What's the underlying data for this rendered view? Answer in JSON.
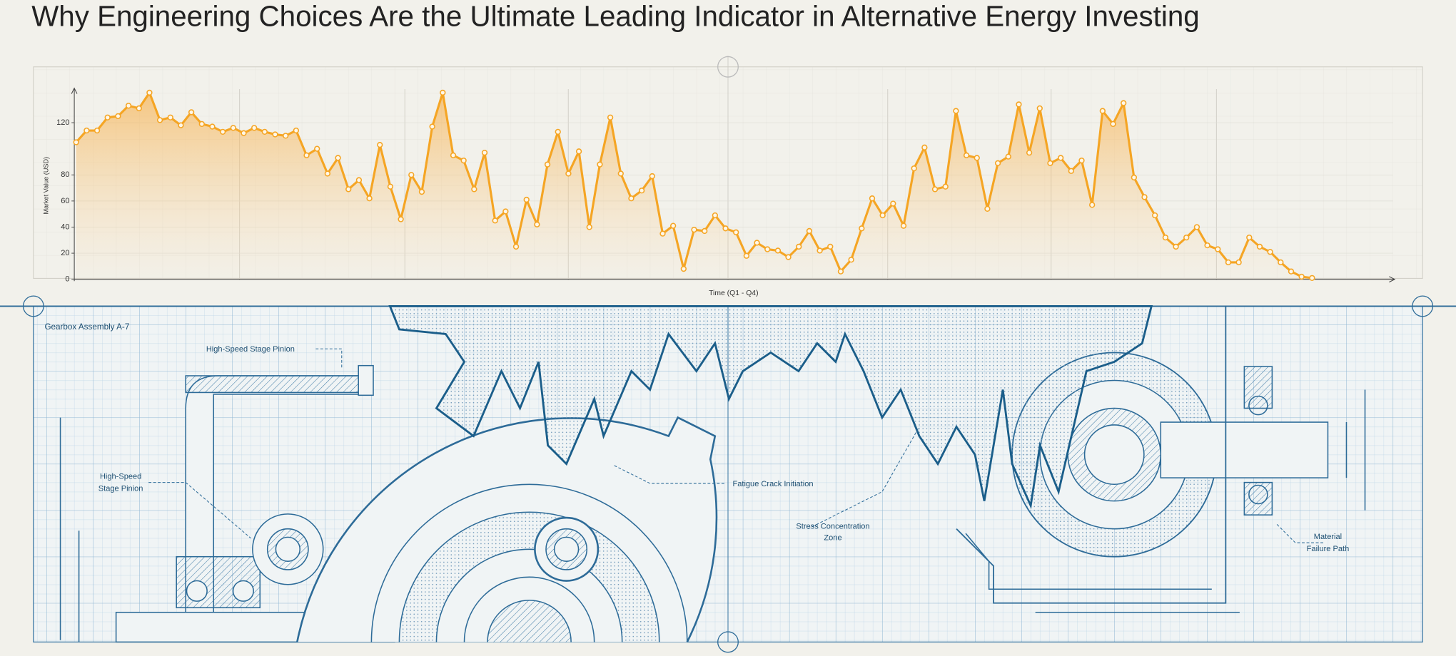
{
  "chart_data": {
    "type": "line",
    "title": "Why Engineering Choices Are the Ultimate Leading Indicator in Alternative Energy Investing",
    "x_label": "Time (Q1 - Q4)",
    "y_label": "Market Value (USD)",
    "color": "#f5a524",
    "ylim": [
      0,
      145
    ],
    "yticks": [
      0,
      20,
      40,
      60,
      80,
      120
    ],
    "grid": true,
    "values": [
      105,
      114,
      114,
      124,
      125,
      133,
      131,
      143,
      122,
      124,
      118,
      128,
      119,
      117,
      113,
      116,
      112,
      116,
      113,
      111,
      110,
      114,
      95,
      100,
      81,
      93,
      69,
      76,
      62,
      103,
      71,
      46,
      80,
      67,
      117,
      143,
      95,
      91,
      69,
      97,
      45,
      52,
      25,
      61,
      42,
      88,
      113,
      81,
      98,
      40,
      88,
      124,
      81,
      62,
      68,
      79,
      35,
      41,
      8,
      38,
      37,
      49,
      39,
      36,
      18,
      28,
      23,
      22,
      17,
      25,
      37,
      22,
      25,
      6,
      15,
      39,
      62,
      49,
      58,
      41,
      85,
      101,
      69,
      71,
      129,
      95,
      93,
      54,
      89,
      94,
      134,
      97,
      131,
      89,
      93,
      83,
      91,
      57,
      129,
      119,
      135,
      78,
      63,
      49,
      32,
      25,
      32,
      40,
      26,
      23,
      13,
      13,
      32,
      25,
      21,
      13,
      6,
      2,
      1
    ]
  },
  "blueprint": {
    "title": "Gearbox Assembly A-7",
    "callouts": [
      "High-Speed Stage Pinion",
      "High-Speed",
      "Stage Pinion",
      "Fatigue Crack Initiation",
      "Stress Concentration",
      "Zone",
      "Material",
      "Failure Path"
    ]
  }
}
